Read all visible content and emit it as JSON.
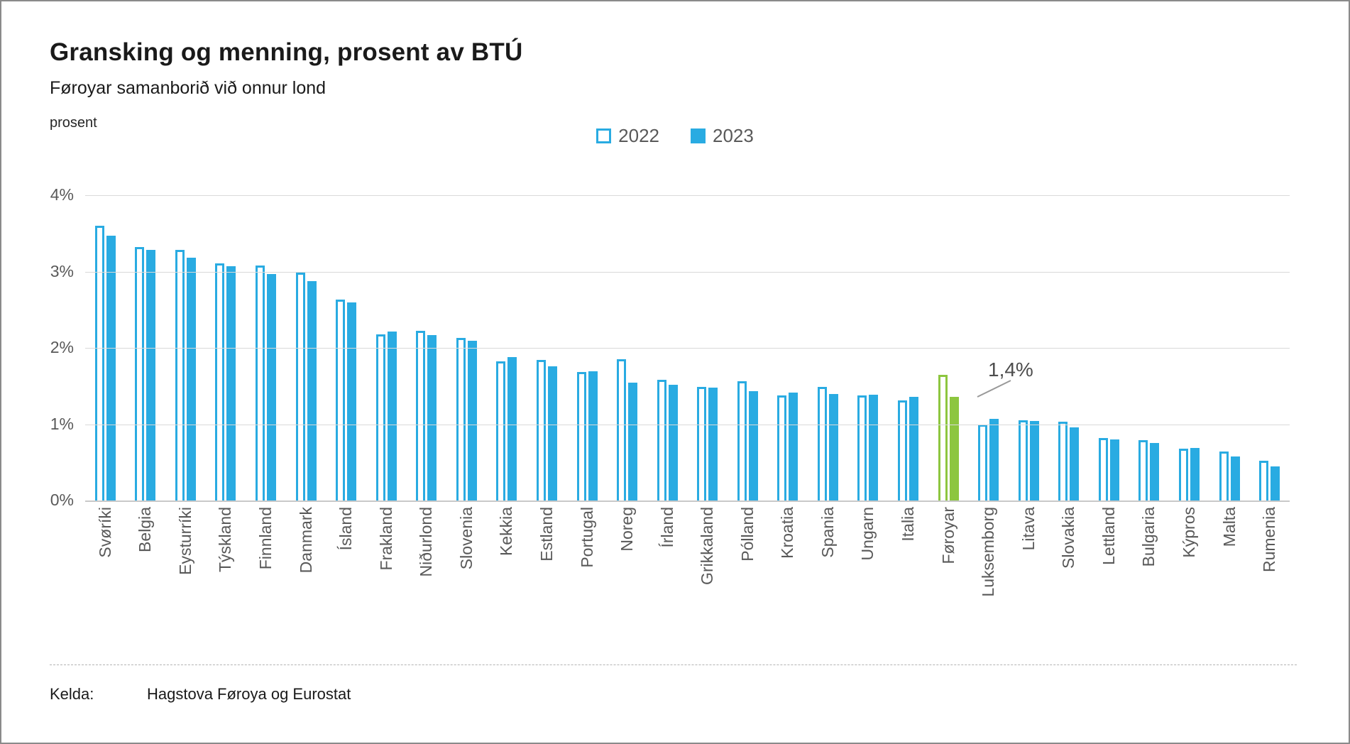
{
  "header": {
    "title": "Gransking og menning, prosent av BTÚ",
    "subtitle": "Føroyar samanborið við onnur lond"
  },
  "axis": {
    "unit_label": "prosent",
    "y_ticks": [
      "4%",
      "3%",
      "2%",
      "1%",
      "0%"
    ]
  },
  "legend": {
    "items": [
      {
        "label": "2022",
        "style": "hollow"
      },
      {
        "label": "2023",
        "style": "filled"
      }
    ]
  },
  "colors": {
    "series_blue": "#29ABE2",
    "highlight_green": "#8DC63F",
    "grid": "#d9d9d9",
    "text_gray": "#595959"
  },
  "annotation": {
    "text": "1,4%",
    "target_category": "Føroyar",
    "target_series": "2023"
  },
  "footer": {
    "label": "Kelda:",
    "source": "Hagstova Føroya og Eurostat"
  },
  "chart_data": {
    "type": "bar",
    "title": "Gransking og menning, prosent av BTÚ",
    "subtitle": "Føroyar samanborið við onnur lond",
    "ylabel": "prosent",
    "ylim": [
      0,
      4
    ],
    "grid": true,
    "legend_position": "top-center",
    "highlight_category": "Føroyar",
    "categories": [
      "Svøríki",
      "Belgia",
      "Eysturríki",
      "Týskland",
      "Finnland",
      "Danmark",
      "Ísland",
      "Frakland",
      "Niðurlond",
      "Slovenia",
      "Kekkia",
      "Estland",
      "Portugal",
      "Noreg",
      "Írland",
      "Grikkaland",
      "Pólland",
      "Kroatia",
      "Spania",
      "Ungarn",
      "Italia",
      "Føroyar",
      "Luksemborg",
      "Litava",
      "Slovakia",
      "Lettland",
      "Bulgaria",
      "Kýpros",
      "Malta",
      "Rumenia"
    ],
    "series": [
      {
        "name": "2022",
        "values": [
          3.6,
          3.32,
          3.28,
          3.11,
          3.08,
          2.99,
          2.63,
          2.18,
          2.22,
          2.13,
          1.82,
          1.84,
          1.68,
          1.85,
          1.58,
          1.49,
          1.56,
          1.38,
          1.49,
          1.38,
          1.31,
          1.65,
          1.0,
          1.05,
          1.03,
          0.82,
          0.79,
          0.68,
          0.64,
          0.52
        ]
      },
      {
        "name": "2023",
        "values": [
          3.47,
          3.28,
          3.18,
          3.07,
          2.97,
          2.87,
          2.6,
          2.21,
          2.17,
          2.09,
          1.88,
          1.76,
          1.69,
          1.54,
          1.52,
          1.48,
          1.43,
          1.41,
          1.4,
          1.39,
          1.36,
          1.36,
          1.07,
          1.04,
          0.96,
          0.8,
          0.75,
          0.69,
          0.58,
          0.45
        ]
      }
    ]
  }
}
